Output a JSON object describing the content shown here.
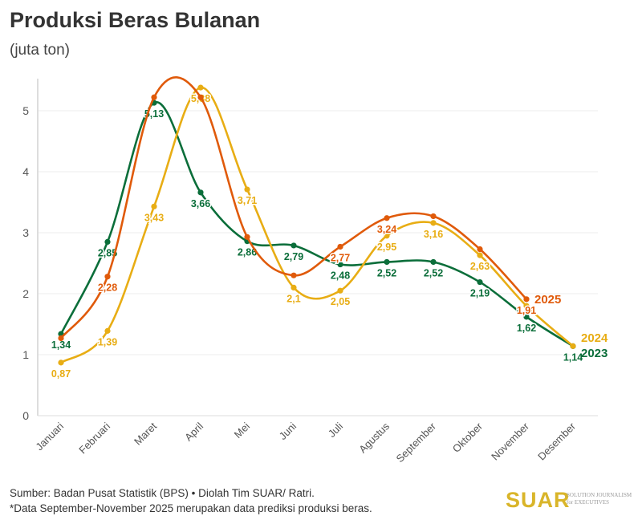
{
  "chart_data": {
    "type": "line",
    "title": "Produksi Beras Bulanan",
    "subtitle": "(juta ton)",
    "xlabel": "",
    "ylabel": "juta ton",
    "ylim": [
      0,
      5.5
    ],
    "yticks": [
      "0",
      "1",
      "2",
      "3",
      "4",
      "5"
    ],
    "grid": true,
    "legend": "inline-right",
    "categories": [
      "Januari",
      "Februari",
      "Maret",
      "April",
      "Mei",
      "Juni",
      "Juli",
      "Agustus",
      "September",
      "Oktober",
      "November",
      "Desember"
    ],
    "series": [
      {
        "name": "2023",
        "color": "#0b6e3a",
        "values": [
          1.34,
          2.85,
          5.13,
          3.66,
          2.86,
          2.79,
          2.48,
          2.52,
          2.52,
          2.19,
          1.62,
          1.14
        ],
        "labels": [
          "1,34",
          "2,85",
          "5,13",
          "3,66",
          "2,86",
          "2,79",
          "2,48",
          "2,52",
          "2,52",
          "2,19",
          "1,62",
          "1,14"
        ]
      },
      {
        "name": "2024",
        "color": "#e8ad14",
        "values": [
          0.87,
          1.39,
          3.43,
          5.38,
          3.71,
          2.1,
          2.05,
          2.95,
          3.16,
          2.63,
          1.8,
          1.14
        ],
        "labels": [
          "0,87",
          "1,39",
          "3,43",
          "5,38",
          "3,71",
          "2,1",
          "2,05",
          "2,95",
          "3,16",
          "2,63",
          "",
          ""
        ]
      },
      {
        "name": "2025",
        "color": "#e05a0a",
        "values": [
          1.27,
          2.28,
          5.22,
          5.22,
          2.93,
          2.3,
          2.77,
          3.24,
          3.27,
          2.73,
          1.91,
          null
        ],
        "labels": [
          "",
          "2,28",
          "",
          "",
          "",
          "",
          "2,77",
          "3,24",
          "",
          "",
          "1,91",
          ""
        ]
      }
    ]
  },
  "footer": {
    "source": "Sumber: Badan Pusat Statistik (BPS) • Diolah Tim SUAR/ Ratri.",
    "note": "*Data September-November 2025 merupakan data prediksi produksi beras.",
    "logo": "SUAR",
    "logo_sub1": "SOLUTION JOURNALISM",
    "logo_sub2": "for EXECUTIVES"
  }
}
